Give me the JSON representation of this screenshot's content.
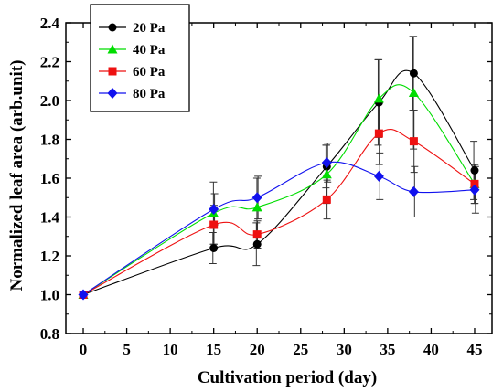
{
  "chart_data": {
    "type": "line",
    "title": "",
    "xlabel": "Cultivation period (day)",
    "ylabel": "Normalized leaf area (arb.unit)",
    "xlim": [
      -2,
      47
    ],
    "ylim": [
      0.8,
      2.4
    ],
    "xticks": [
      0,
      5,
      10,
      15,
      20,
      25,
      30,
      35,
      40,
      45
    ],
    "yticks": [
      0.8,
      1.0,
      1.2,
      1.4,
      1.6,
      1.8,
      2.0,
      2.2,
      2.4
    ],
    "x": [
      0,
      15,
      20,
      28,
      34,
      38,
      45
    ],
    "grid": false,
    "legend_position": "top-left",
    "series": [
      {
        "name": "20 Pa",
        "color": "#000000",
        "marker": "circle",
        "values": [
          1.0,
          1.24,
          1.26,
          1.66,
          1.99,
          2.14,
          1.64
        ],
        "errors": [
          0,
          0.08,
          0.11,
          0.11,
          0.22,
          0.19,
          0.15
        ]
      },
      {
        "name": "40 Pa",
        "color": "#00dd00",
        "marker": "triangle",
        "values": [
          1.0,
          1.42,
          1.45,
          1.62,
          2.01,
          2.04,
          1.57
        ],
        "errors": [
          0,
          0.16,
          0.15,
          0.15,
          0.2,
          0.29,
          0.1
        ]
      },
      {
        "name": "60 Pa",
        "color": "#ee1111",
        "marker": "square",
        "values": [
          1.0,
          1.36,
          1.31,
          1.49,
          1.83,
          1.79,
          1.57
        ],
        "errors": [
          0,
          0.1,
          0.07,
          0.1,
          0.16,
          0.16,
          0.1
        ]
      },
      {
        "name": "80 Pa",
        "color": "#1111ee",
        "marker": "diamond",
        "values": [
          1.0,
          1.44,
          1.5,
          1.68,
          1.61,
          1.53,
          1.54
        ],
        "errors": [
          0,
          0.08,
          0.11,
          0.1,
          0.12,
          0.13,
          0.12
        ]
      }
    ]
  }
}
